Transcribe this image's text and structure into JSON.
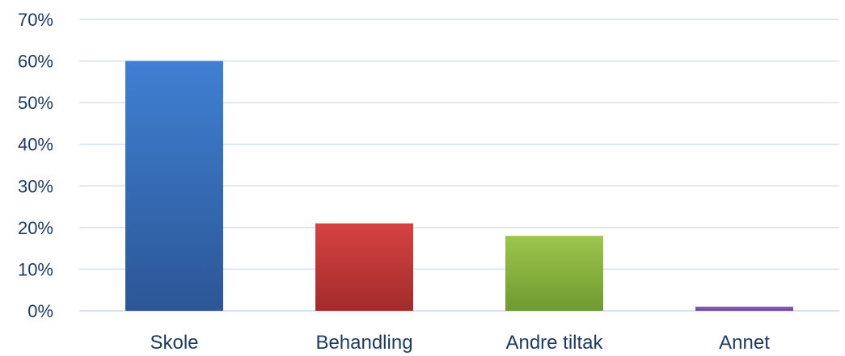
{
  "chart_data": {
    "type": "bar",
    "categories": [
      "Skole",
      "Behandling",
      "Andre tiltak",
      "Annet"
    ],
    "values": [
      60,
      21,
      18,
      1
    ],
    "unit": "%",
    "ylim": [
      0,
      70
    ],
    "yticks": [
      0,
      10,
      20,
      30,
      40,
      50,
      60,
      70
    ],
    "ytick_labels": [
      "0%",
      "10%",
      "20%",
      "30%",
      "40%",
      "50%",
      "60%",
      "70%"
    ],
    "grid": true,
    "legend": "none",
    "colors": [
      {
        "top": "#3f80d2",
        "bottom": "#2c5696"
      },
      {
        "top": "#d44342",
        "bottom": "#a32b2b"
      },
      {
        "top": "#9dc64c",
        "bottom": "#6f9a30"
      },
      {
        "top": "#8a62b8",
        "bottom": "#6a4796"
      }
    ],
    "title": "",
    "xlabel": "",
    "ylabel": ""
  }
}
